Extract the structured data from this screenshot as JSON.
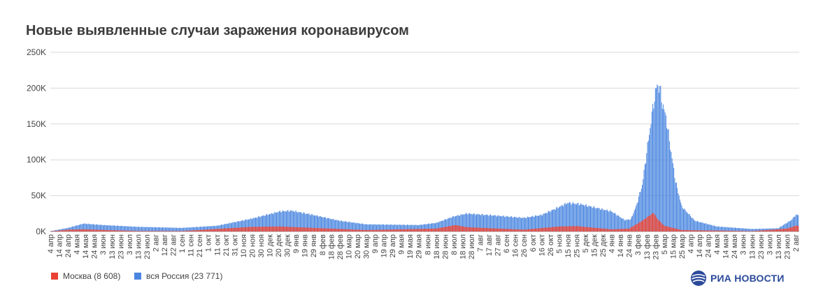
{
  "title": "Новые выявленные случаи заражения коронавирусом",
  "logo": {
    "text": "РИА НОВОСТИ",
    "icon": "ria-globe-icon"
  },
  "colors": {
    "moscow": "#ea4335",
    "russia": "#4a86e0",
    "grid": "#d9d9d9",
    "text": "#444444"
  },
  "chart_data": {
    "type": "bar",
    "ylim": [
      0,
      250000
    ],
    "y_ticks": [
      {
        "value": 0,
        "label": "0K"
      },
      {
        "value": 50000,
        "label": "50K"
      },
      {
        "value": 100000,
        "label": "100K"
      },
      {
        "value": 150000,
        "label": "150K"
      },
      {
        "value": 200000,
        "label": "200K"
      },
      {
        "value": 250000,
        "label": "250K"
      }
    ],
    "x_tick_labels": [
      "4 апр",
      "14 апр",
      "24 апр",
      "4 мая",
      "14 мая",
      "24 мая",
      "3 июн",
      "13 июн",
      "23 июн",
      "3 июл",
      "13 июл",
      "23 июл",
      "2 авг",
      "12 авг",
      "22 авг",
      "1 сен",
      "11 сен",
      "21 сен",
      "1 окт",
      "11 окт",
      "21 окт",
      "31 окт",
      "10 ноя",
      "20 ноя",
      "30 ноя",
      "10 дек",
      "20 дек",
      "30 дек",
      "9 янв",
      "19 янв",
      "29 янв",
      "8 фев",
      "18 фев",
      "28 фев",
      "10 мар",
      "20 мар",
      "30 мар",
      "9 апр",
      "19 апр",
      "29 апр",
      "9 мая",
      "19 мая",
      "29 мая",
      "8 июн",
      "18 июн",
      "28 июн",
      "8 июл",
      "18 июл",
      "28 июл",
      "7 авг",
      "17 авг",
      "27 авг",
      "6 сен",
      "16 сен",
      "26 сен",
      "6 окт",
      "16 окт",
      "26 окт",
      "5 ноя",
      "15 ноя",
      "25 ноя",
      "5 дек",
      "15 дек",
      "25 дек",
      "4 янв",
      "14 янв",
      "24 янв",
      "3 фев",
      "13 фев",
      "23 фев",
      "5 мар",
      "15 мар",
      "25 мар",
      "4 апр",
      "14 апр",
      "24 апр",
      "4 мая",
      "14 мая",
      "24 мая",
      "3 июн",
      "13 июн",
      "23 июн",
      "3 июл",
      "13 июл",
      "23 июл",
      "2 авг"
    ],
    "days_per_tick": 10,
    "russia_curve": [
      [
        0,
        500
      ],
      [
        20,
        5000
      ],
      [
        38,
        11000
      ],
      [
        60,
        9000
      ],
      [
        100,
        6500
      ],
      [
        150,
        5000
      ],
      [
        190,
        8000
      ],
      [
        230,
        18000
      ],
      [
        262,
        28000
      ],
      [
        275,
        29000
      ],
      [
        300,
        23000
      ],
      [
        330,
        15000
      ],
      [
        360,
        10000
      ],
      [
        420,
        9000
      ],
      [
        440,
        12000
      ],
      [
        460,
        21000
      ],
      [
        475,
        25000
      ],
      [
        510,
        22000
      ],
      [
        540,
        19000
      ],
      [
        560,
        23000
      ],
      [
        580,
        34000
      ],
      [
        590,
        40000
      ],
      [
        605,
        38000
      ],
      [
        640,
        28000
      ],
      [
        655,
        16000
      ],
      [
        662,
        17000
      ],
      [
        668,
        35000
      ],
      [
        675,
        65000
      ],
      [
        680,
        110000
      ],
      [
        684,
        145000
      ],
      [
        688,
        180000
      ],
      [
        692,
        205000
      ],
      [
        695,
        200000
      ],
      [
        698,
        178000
      ],
      [
        702,
        160000
      ],
      [
        708,
        110000
      ],
      [
        713,
        70000
      ],
      [
        720,
        35000
      ],
      [
        735,
        15000
      ],
      [
        760,
        7000
      ],
      [
        800,
        3500
      ],
      [
        830,
        4500
      ],
      [
        845,
        16000
      ],
      [
        850,
        23000
      ]
    ],
    "moscow_curve": [
      [
        0,
        200
      ],
      [
        20,
        2500
      ],
      [
        38,
        3000
      ],
      [
        100,
        700
      ],
      [
        150,
        600
      ],
      [
        230,
        6500
      ],
      [
        262,
        7000
      ],
      [
        300,
        5000
      ],
      [
        360,
        2000
      ],
      [
        440,
        4000
      ],
      [
        462,
        9000
      ],
      [
        475,
        6000
      ],
      [
        540,
        2500
      ],
      [
        580,
        7000
      ],
      [
        600,
        7500
      ],
      [
        640,
        3000
      ],
      [
        660,
        4000
      ],
      [
        675,
        15000
      ],
      [
        683,
        22000
      ],
      [
        688,
        26000
      ],
      [
        692,
        18000
      ],
      [
        700,
        8000
      ],
      [
        720,
        2000
      ],
      [
        800,
        500
      ],
      [
        840,
        4000
      ],
      [
        850,
        8000
      ]
    ],
    "series": [
      {
        "name": "Москва (8 608)",
        "color": "#ea4335",
        "key": "moscow_curve"
      },
      {
        "name": "вся Россия (23 771)",
        "color": "#4a86e0",
        "key": "russia_curve"
      }
    ],
    "grid": true,
    "legend_position": "bottom-left"
  }
}
